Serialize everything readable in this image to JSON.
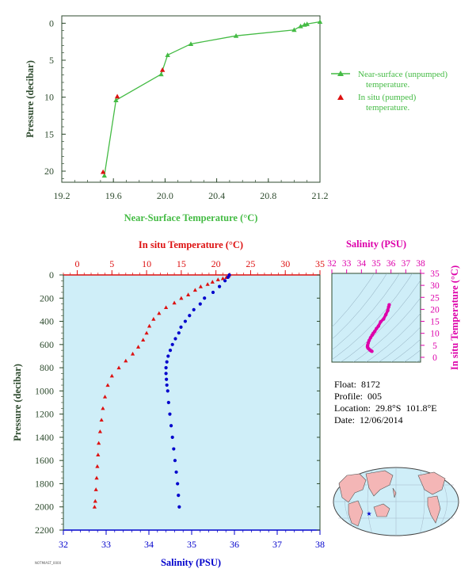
{
  "colors": {
    "near_surface": "#44bb44",
    "insitu_temp": "#dd1111",
    "salinity": "#0000cc",
    "magenta": "#dd00aa",
    "panel_bg": "#cfeef8",
    "axis_text": "#2d4a2d"
  },
  "info": {
    "float_label": "Float:",
    "float_value": "8172",
    "profile_label": "Profile:",
    "profile_value": "005",
    "location_label": "Location:",
    "location_value": "29.8°S  101.8°E",
    "date_label": "Date:",
    "date_value": "12/06/2014"
  },
  "footer": "NOTMIAST_0000",
  "chart_data": [
    {
      "type": "line",
      "id": "near-surface",
      "xlabel": "Near-Surface Temperature (°C)",
      "ylabel": "Pressure (decibar)",
      "xlim": [
        19.2,
        21.2
      ],
      "ylim": [
        21.5,
        -1
      ],
      "xticks": [
        "19.2",
        "19.6",
        "20.0",
        "20.4",
        "20.8",
        "21.2"
      ],
      "yticks": [
        "0",
        "5",
        "10",
        "15",
        "20"
      ],
      "legend_position": "right",
      "series": [
        {
          "name": "Near-surface (unpumped) temperature.",
          "marker": "triangle",
          "points": [
            [
              21.2,
              -0.2
            ],
            [
              21.1,
              0.1
            ],
            [
              21.08,
              0.2
            ],
            [
              21.05,
              0.4
            ],
            [
              21.0,
              0.9
            ],
            [
              20.55,
              1.7
            ],
            [
              20.2,
              2.8
            ],
            [
              20.02,
              4.3
            ],
            [
              19.97,
              6.9
            ],
            [
              19.62,
              10.4
            ],
            [
              19.53,
              20.6
            ]
          ]
        },
        {
          "name": "In situ (pumped) temperature.",
          "marker": "triangle",
          "points": [
            [
              19.98,
              6.3
            ],
            [
              19.63,
              9.9
            ],
            [
              19.52,
              20.1
            ]
          ]
        }
      ]
    },
    {
      "type": "scatter",
      "id": "profile",
      "ylabel": "Pressure (decibar)",
      "ylim": [
        2200,
        0
      ],
      "yticks": [
        "0",
        "200",
        "400",
        "600",
        "800",
        "1000",
        "1200",
        "1400",
        "1600",
        "1800",
        "2000",
        "2200"
      ],
      "top_axis": {
        "label": "In situ Temperature (°C)",
        "lim": [
          -2,
          35
        ],
        "ticks": [
          "0",
          "5",
          "10",
          "15",
          "20",
          "25",
          "30",
          "35"
        ]
      },
      "bottom_axis": {
        "label": "Salinity (PSU)",
        "lim": [
          32,
          38
        ],
        "ticks": [
          "32",
          "33",
          "34",
          "35",
          "36",
          "37",
          "38"
        ]
      },
      "series": [
        {
          "name": "In situ Temperature",
          "marker": "triangle",
          "points": [
            [
              21.9,
              0
            ],
            [
              21.8,
              10
            ],
            [
              21.5,
              20
            ],
            [
              21.0,
              30
            ],
            [
              20.3,
              40
            ],
            [
              19.5,
              60
            ],
            [
              18.8,
              80
            ],
            [
              17.8,
              100
            ],
            [
              17.0,
              130
            ],
            [
              16.0,
              170
            ],
            [
              15.0,
              200
            ],
            [
              14.0,
              240
            ],
            [
              12.8,
              280
            ],
            [
              11.8,
              330
            ],
            [
              11.0,
              380
            ],
            [
              10.4,
              440
            ],
            [
              10.0,
              500
            ],
            [
              9.5,
              560
            ],
            [
              8.8,
              620
            ],
            [
              8.0,
              680
            ],
            [
              7.0,
              740
            ],
            [
              6.0,
              800
            ],
            [
              5.0,
              870
            ],
            [
              4.4,
              950
            ],
            [
              4.0,
              1050
            ],
            [
              3.7,
              1150
            ],
            [
              3.5,
              1250
            ],
            [
              3.3,
              1350
            ],
            [
              3.1,
              1450
            ],
            [
              3.0,
              1550
            ],
            [
              2.9,
              1650
            ],
            [
              2.8,
              1750
            ],
            [
              2.7,
              1850
            ],
            [
              2.6,
              1950
            ],
            [
              2.5,
              2000
            ]
          ]
        },
        {
          "name": "Salinity",
          "marker": "circle",
          "points": [
            [
              35.88,
              0
            ],
            [
              35.85,
              20
            ],
            [
              35.78,
              50
            ],
            [
              35.65,
              100
            ],
            [
              35.5,
              150
            ],
            [
              35.3,
              200
            ],
            [
              35.2,
              250
            ],
            [
              35.05,
              300
            ],
            [
              34.95,
              350
            ],
            [
              34.85,
              400
            ],
            [
              34.75,
              450
            ],
            [
              34.7,
              500
            ],
            [
              34.62,
              550
            ],
            [
              34.55,
              600
            ],
            [
              34.5,
              650
            ],
            [
              34.45,
              700
            ],
            [
              34.42,
              750
            ],
            [
              34.4,
              800
            ],
            [
              34.4,
              850
            ],
            [
              34.41,
              900
            ],
            [
              34.42,
              950
            ],
            [
              34.44,
              1000
            ],
            [
              34.46,
              1100
            ],
            [
              34.49,
              1200
            ],
            [
              34.52,
              1300
            ],
            [
              34.55,
              1400
            ],
            [
              34.58,
              1500
            ],
            [
              34.61,
              1600
            ],
            [
              34.64,
              1700
            ],
            [
              34.67,
              1800
            ],
            [
              34.69,
              1900
            ],
            [
              34.71,
              2000
            ]
          ]
        }
      ]
    },
    {
      "type": "scatter",
      "id": "ts-diagram",
      "top_axis": {
        "label": "Salinity (PSU)",
        "lim": [
          32,
          38
        ],
        "ticks": [
          "32",
          "33",
          "34",
          "35",
          "36",
          "37",
          "38"
        ]
      },
      "right_axis": {
        "label": "In situ Temperature (°C)",
        "lim": [
          -2,
          35
        ],
        "ticks": [
          "0",
          "5",
          "10",
          "15",
          "20",
          "25",
          "30",
          "35"
        ]
      },
      "grid": true,
      "series": [
        {
          "name": "T-S",
          "marker": "circle",
          "points": [
            [
              35.88,
              21.9
            ],
            [
              35.84,
              21.0
            ],
            [
              35.78,
              19.5
            ],
            [
              35.65,
              17.8
            ],
            [
              35.5,
              16.0
            ],
            [
              35.3,
              14.8
            ],
            [
              35.15,
              13.0
            ],
            [
              35.02,
              12.0
            ],
            [
              34.9,
              10.8
            ],
            [
              34.8,
              10.0
            ],
            [
              34.72,
              9.2
            ],
            [
              34.62,
              8.2
            ],
            [
              34.52,
              7.0
            ],
            [
              34.46,
              6.0
            ],
            [
              34.42,
              5.0
            ],
            [
              34.41,
              4.4
            ],
            [
              34.44,
              3.9
            ],
            [
              34.5,
              3.5
            ],
            [
              34.58,
              3.0
            ],
            [
              34.65,
              2.7
            ],
            [
              34.71,
              2.5
            ]
          ]
        }
      ]
    }
  ]
}
